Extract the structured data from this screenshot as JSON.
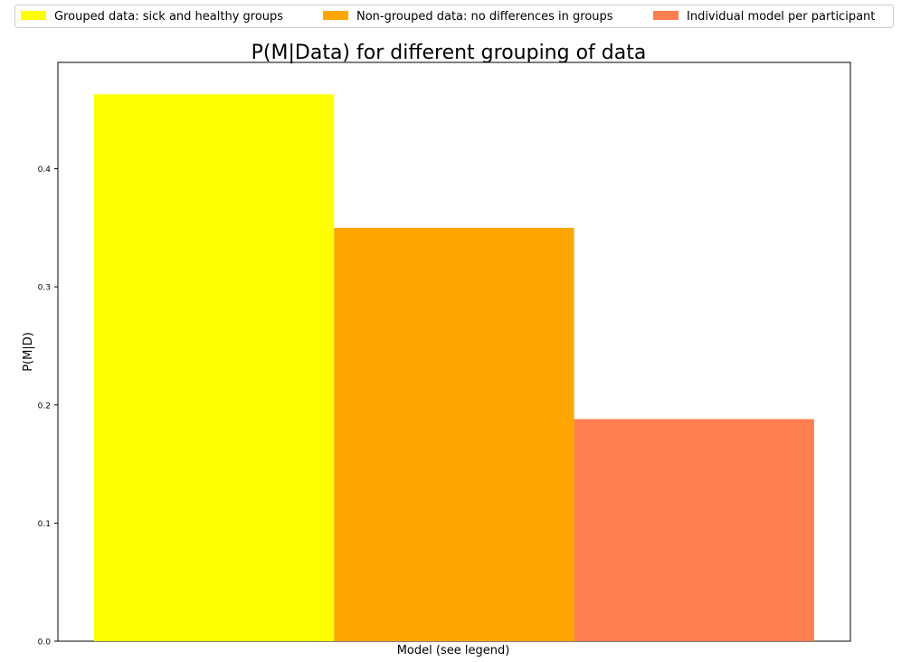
{
  "chart_data": {
    "type": "bar",
    "title": "P(M|Data) for different grouping of data",
    "xlabel": "Model (see legend)",
    "ylabel": "P(M|D)",
    "ylim": [
      0.0,
      0.49
    ],
    "yticks": [
      0.0,
      0.1,
      0.2,
      0.3,
      0.4
    ],
    "ytick_labels": [
      "0.0",
      "0.1",
      "0.2",
      "0.3",
      "0.4"
    ],
    "grid": false,
    "legend_position": "top",
    "categories": [
      "Grouped data: sick and healthy groups",
      "Non-grouped data: no differences in groups",
      "Individual model per participant"
    ],
    "values": [
      0.463,
      0.35,
      0.188
    ],
    "colors": [
      "#ffff00",
      "#ffa500",
      "#ff7f50"
    ]
  }
}
